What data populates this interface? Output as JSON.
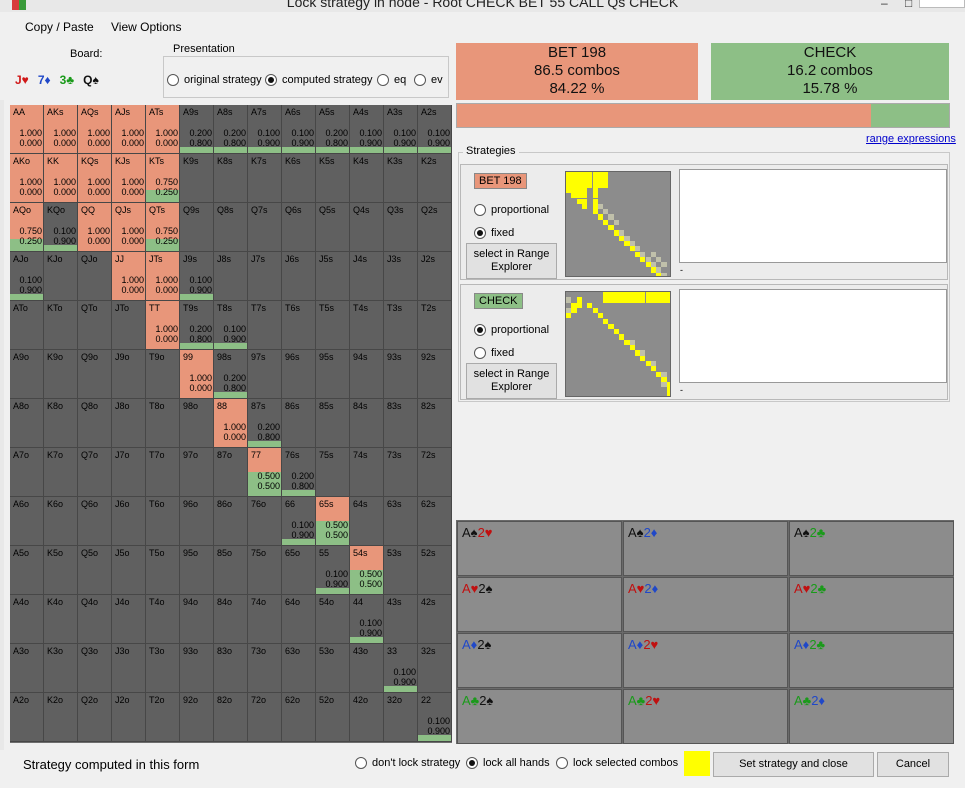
{
  "window": {
    "title": "Lock strategy in node  - Root CHECK BET 55 CALL Qs CHECK",
    "minimize": "–",
    "maximize": "□",
    "close": "✕"
  },
  "menu": [
    "Copy / Paste",
    "View Options"
  ],
  "board": {
    "label": "Board:",
    "cards": [
      {
        "text": "J♥",
        "color": "#d01818"
      },
      {
        "text": "7♦",
        "color": "#2048c8"
      },
      {
        "text": "3♣",
        "color": "#1a9a1a"
      },
      {
        "text": "Q♠",
        "color": "#111111"
      }
    ]
  },
  "presentation": {
    "legend": "Presentation",
    "options": [
      {
        "label": "original strategy",
        "selected": false
      },
      {
        "label": "computed strategy",
        "selected": true
      },
      {
        "label": "eq",
        "selected": false
      },
      {
        "label": "ev",
        "selected": false
      }
    ]
  },
  "colors": {
    "bet": "#e8967a",
    "check": "#8dbf86",
    "empty": "#606060",
    "lock": "#ffff00"
  },
  "matrix": {
    "rows": [
      [
        "AA",
        "AKs",
        "AQs",
        "AJs",
        "ATs",
        "A9s",
        "A8s",
        "A7s",
        "A6s",
        "A5s",
        "A4s",
        "A3s",
        "A2s"
      ],
      [
        "AKo",
        "KK",
        "KQs",
        "KJs",
        "KTs",
        "K9s",
        "K8s",
        "K7s",
        "K6s",
        "K5s",
        "K4s",
        "K3s",
        "K2s"
      ],
      [
        "AQo",
        "KQo",
        "QQ",
        "QJs",
        "QTs",
        "Q9s",
        "Q8s",
        "Q7s",
        "Q6s",
        "Q5s",
        "Q4s",
        "Q3s",
        "Q2s"
      ],
      [
        "AJo",
        "KJo",
        "QJo",
        "JJ",
        "JTs",
        "J9s",
        "J8s",
        "J7s",
        "J6s",
        "J5s",
        "J4s",
        "J3s",
        "J2s"
      ],
      [
        "ATo",
        "KTo",
        "QTo",
        "JTo",
        "TT",
        "T9s",
        "T8s",
        "T7s",
        "T6s",
        "T5s",
        "T4s",
        "T3s",
        "T2s"
      ],
      [
        "A9o",
        "K9o",
        "Q9o",
        "J9o",
        "T9o",
        "99",
        "98s",
        "97s",
        "96s",
        "95s",
        "94s",
        "93s",
        "92s"
      ],
      [
        "A8o",
        "K8o",
        "Q8o",
        "J8o",
        "T8o",
        "98o",
        "88",
        "87s",
        "86s",
        "85s",
        "84s",
        "83s",
        "82s"
      ],
      [
        "A7o",
        "K7o",
        "Q7o",
        "J7o",
        "T7o",
        "97o",
        "87o",
        "77",
        "76s",
        "75s",
        "74s",
        "73s",
        "72s"
      ],
      [
        "A6o",
        "K6o",
        "Q6o",
        "J6o",
        "T6o",
        "96o",
        "86o",
        "76o",
        "66",
        "65s",
        "64s",
        "63s",
        "62s"
      ],
      [
        "A5o",
        "K5o",
        "Q5o",
        "J5o",
        "T5o",
        "95o",
        "85o",
        "75o",
        "65o",
        "55",
        "54s",
        "53s",
        "52s"
      ],
      [
        "A4o",
        "K4o",
        "Q4o",
        "J4o",
        "T4o",
        "94o",
        "84o",
        "74o",
        "64o",
        "54o",
        "44",
        "43s",
        "42s"
      ],
      [
        "A3o",
        "K3o",
        "Q3o",
        "J3o",
        "T3o",
        "93o",
        "83o",
        "73o",
        "63o",
        "53o",
        "43o",
        "33",
        "32s"
      ],
      [
        "A2o",
        "K2o",
        "Q2o",
        "J2o",
        "T2o",
        "92o",
        "82o",
        "72o",
        "62o",
        "52o",
        "42o",
        "32o",
        "22"
      ]
    ],
    "values": {
      "AA": [
        "1.000",
        "0.000"
      ],
      "AKs": [
        "1.000",
        "0.000"
      ],
      "AQs": [
        "1.000",
        "0.000"
      ],
      "AJs": [
        "1.000",
        "0.000"
      ],
      "ATs": [
        "1.000",
        "0.000"
      ],
      "A9s": [
        "0.200",
        "0.800"
      ],
      "A8s": [
        "0.200",
        "0.800"
      ],
      "A7s": [
        "0.100",
        "0.900"
      ],
      "A6s": [
        "0.100",
        "0.900"
      ],
      "A5s": [
        "0.200",
        "0.800"
      ],
      "A4s": [
        "0.100",
        "0.900"
      ],
      "A3s": [
        "0.100",
        "0.900"
      ],
      "A2s": [
        "0.100",
        "0.900"
      ],
      "AKo": [
        "1.000",
        "0.000"
      ],
      "KK": [
        "1.000",
        "0.000"
      ],
      "KQs": [
        "1.000",
        "0.000"
      ],
      "KJs": [
        "1.000",
        "0.000"
      ],
      "KTs": [
        "0.750",
        "0.250"
      ],
      "AQo": [
        "0.750",
        "0.250"
      ],
      "KQo": [
        "0.100",
        "0.900"
      ],
      "QQ": [
        "1.000",
        "0.000"
      ],
      "QJs": [
        "1.000",
        "0.000"
      ],
      "QTs": [
        "0.750",
        "0.250"
      ],
      "AJo": [
        "0.100",
        "0.900"
      ],
      "JJ": [
        "1.000",
        "0.000"
      ],
      "JTs": [
        "1.000",
        "0.000"
      ],
      "J9s": [
        "0.100",
        "0.900"
      ],
      "TT": [
        "1.000",
        "0.000"
      ],
      "T9s": [
        "0.200",
        "0.800"
      ],
      "T8s": [
        "0.100",
        "0.900"
      ],
      "99": [
        "1.000",
        "0.000"
      ],
      "98s": [
        "0.200",
        "0.800"
      ],
      "88": [
        "1.000",
        "0.000"
      ],
      "87s": [
        "0.200",
        "0.800"
      ],
      "77": [
        "0.500",
        "0.500"
      ],
      "76s": [
        "0.200",
        "0.800"
      ],
      "66": [
        "0.100",
        "0.900"
      ],
      "65s": [
        "0.500",
        "0.500"
      ],
      "55": [
        "0.100",
        "0.900"
      ],
      "54s": [
        "0.500",
        "0.500"
      ],
      "44": [
        "0.100",
        "0.900"
      ],
      "33": [
        "0.100",
        "0.900"
      ],
      "22": [
        "0.100",
        "0.900"
      ]
    }
  },
  "actions": {
    "bet": {
      "name": "BET 198",
      "combos": "86.5 combos",
      "pct": "84.22 %",
      "share": 0.8422
    },
    "check": {
      "name": "CHECK",
      "combos": "16.2 combos",
      "pct": "15.78 %",
      "share": 0.1578
    }
  },
  "range_link": "range expressions",
  "strategies": {
    "legend": "Strategies",
    "panels": [
      {
        "title": "BET 198",
        "color": "#e8967a",
        "opt1": "proportional",
        "opt2": "fixed",
        "selected": "fixed",
        "button": "select in Range Explorer",
        "dash": "-"
      },
      {
        "title": "CHECK",
        "color": "#8dbf86",
        "opt1": "proportional",
        "opt2": "fixed",
        "selected": "proportional",
        "button": "select in Range Explorer",
        "dash": "-"
      }
    ]
  },
  "combos": [
    [
      {
        "a": "A♠",
        "ac": "#111111",
        "b": "2♥",
        "bc": "#c01010"
      },
      {
        "a": "A♠",
        "ac": "#111111",
        "b": "2♦",
        "bc": "#2048c8"
      },
      {
        "a": "A♠",
        "ac": "#111111",
        "b": "2♣",
        "bc": "#1a9a1a"
      }
    ],
    [
      {
        "a": "A♥",
        "ac": "#c01010",
        "b": "2♠",
        "bc": "#111111"
      },
      {
        "a": "A♥",
        "ac": "#c01010",
        "b": "2♦",
        "bc": "#2048c8"
      },
      {
        "a": "A♥",
        "ac": "#c01010",
        "b": "2♣",
        "bc": "#1a9a1a"
      }
    ],
    [
      {
        "a": "A♦",
        "ac": "#2048c8",
        "b": "2♠",
        "bc": "#111111"
      },
      {
        "a": "A♦",
        "ac": "#2048c8",
        "b": "2♥",
        "bc": "#c01010"
      },
      {
        "a": "A♦",
        "ac": "#2048c8",
        "b": "2♣",
        "bc": "#1a9a1a"
      }
    ],
    [
      {
        "a": "A♣",
        "ac": "#1a9a1a",
        "b": "2♠",
        "bc": "#111111"
      },
      {
        "a": "A♣",
        "ac": "#1a9a1a",
        "b": "2♥",
        "bc": "#c01010"
      },
      {
        "a": "A♣",
        "ac": "#1a9a1a",
        "b": "2♦",
        "bc": "#2048c8"
      }
    ]
  ],
  "footer": {
    "status": "Strategy computed in this form",
    "lock_options": [
      {
        "label": "don't lock strategy",
        "selected": false
      },
      {
        "label": "lock all hands",
        "selected": true
      },
      {
        "label": "lock selected combos",
        "selected": false
      }
    ],
    "set_button": "Set strategy and close",
    "cancel_button": "Cancel"
  }
}
